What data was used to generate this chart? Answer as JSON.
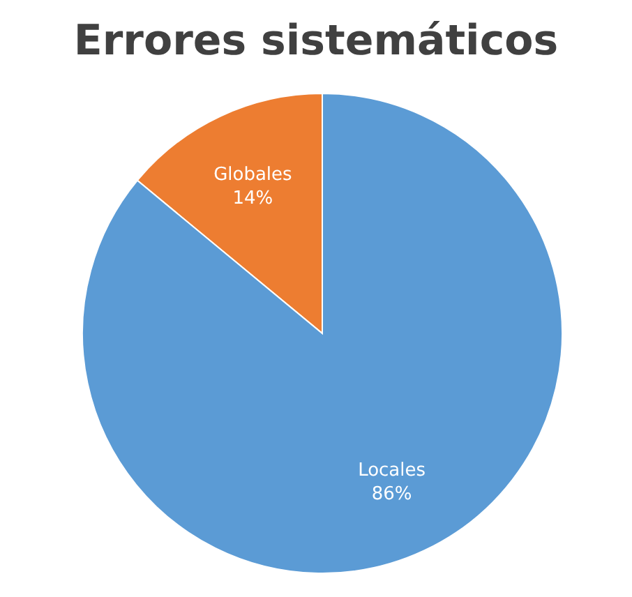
{
  "chart_data": {
    "type": "pie",
    "title": "Errores sistemáticos",
    "categories": [
      "Globales",
      "Locales"
    ],
    "values": [
      14,
      86
    ],
    "colors": [
      "#ed7d31",
      "#5b9bd5"
    ],
    "value_labels": [
      "14%",
      "86%"
    ],
    "legend": false
  }
}
